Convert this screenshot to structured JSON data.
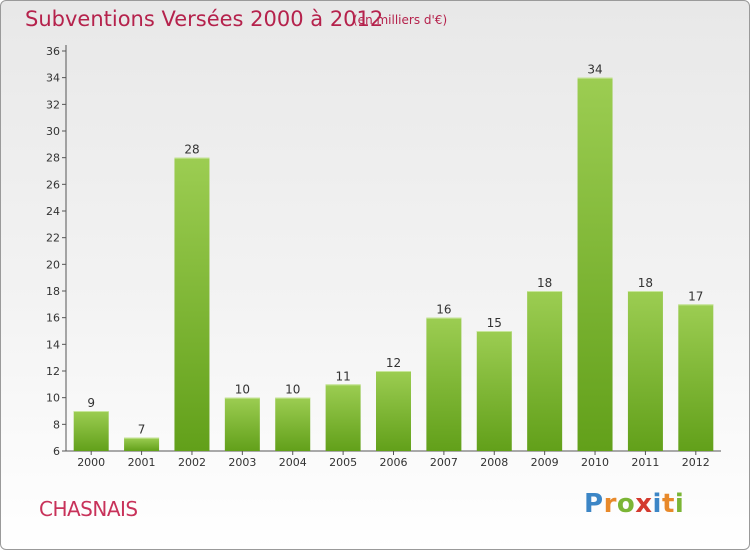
{
  "title": "Subventions Versées 2000 à 2012",
  "subtitle": "(en milliers d'€)",
  "commune": "CHASNAIS",
  "logo": {
    "text": "Proxiti",
    "letters": [
      {
        "ch": "P",
        "color": "#3c86c6"
      },
      {
        "ch": "r",
        "color": "#e8892a"
      },
      {
        "ch": "o",
        "color": "#7bb535"
      },
      {
        "ch": "x",
        "color": "#d43a2e"
      },
      {
        "ch": "i",
        "color": "#3c86c6"
      },
      {
        "ch": "t",
        "color": "#e8892a"
      },
      {
        "ch": "i",
        "color": "#7bb535"
      }
    ]
  },
  "colors": {
    "bar_top": "#9ccd52",
    "bar_bottom": "#62a01a",
    "axis": "#555555",
    "grid_tick": "#555555"
  },
  "chart_data": {
    "type": "bar",
    "categories": [
      "2000",
      "2001",
      "2002",
      "2003",
      "2004",
      "2005",
      "2006",
      "2007",
      "2008",
      "2009",
      "2010",
      "2011",
      "2012"
    ],
    "values": [
      9,
      7,
      28,
      10,
      10,
      11,
      12,
      16,
      15,
      18,
      34,
      18,
      17
    ],
    "ylim": [
      6,
      36
    ],
    "yticks": [
      6,
      8,
      10,
      12,
      14,
      16,
      18,
      20,
      22,
      24,
      26,
      28,
      30,
      32,
      34,
      36
    ],
    "grid": false
  }
}
